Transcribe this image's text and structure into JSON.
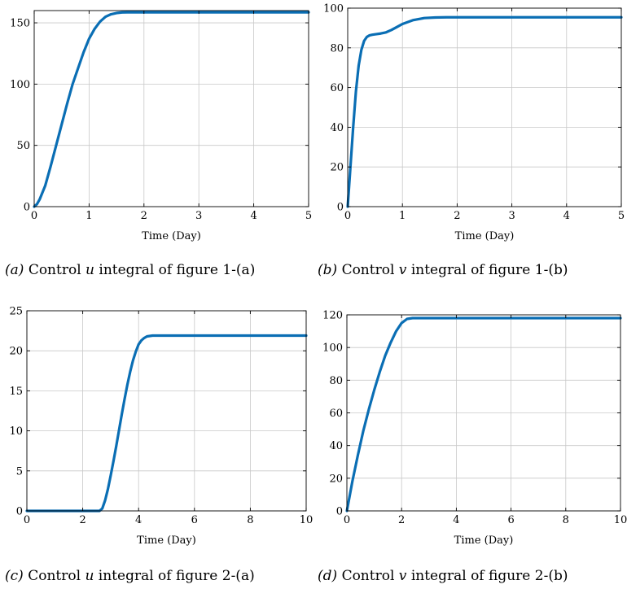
{
  "chart_data": [
    {
      "id": "a",
      "type": "line",
      "xlabel": "Time (Day)",
      "ylabel": "",
      "xlim": [
        0,
        5
      ],
      "ylim": [
        0,
        160
      ],
      "xticks": [
        0,
        1,
        2,
        3,
        4,
        5
      ],
      "yticks": [
        0,
        50,
        100,
        150
      ],
      "grid": true,
      "color": "#0a6eb4",
      "caption": {
        "letter": "(a)",
        "pre": "Control",
        "var": "u",
        "post": "integral of figure 1-(a)"
      },
      "series": [
        {
          "x": [
            0,
            0.05,
            0.1,
            0.2,
            0.3,
            0.4,
            0.5,
            0.6,
            0.7,
            0.8,
            0.9,
            1.0,
            1.1,
            1.2,
            1.3,
            1.4,
            1.5,
            1.6,
            1.7,
            2.0,
            3.0,
            4.0,
            5.0
          ],
          "y": [
            0,
            2,
            6,
            17,
            33,
            50,
            67,
            84,
            100,
            113,
            126,
            137,
            145,
            151,
            155,
            157,
            158,
            158.5,
            158.6,
            158.6,
            158.6,
            158.6,
            158.6
          ]
        }
      ]
    },
    {
      "id": "b",
      "type": "line",
      "xlabel": "Time (Day)",
      "ylabel": "",
      "xlim": [
        0,
        5
      ],
      "ylim": [
        0,
        100
      ],
      "xticks": [
        0,
        1,
        2,
        3,
        4,
        5
      ],
      "yticks": [
        0,
        20,
        40,
        60,
        80,
        100
      ],
      "grid": true,
      "color": "#0a6eb4",
      "caption": {
        "letter": "(b)",
        "pre": "Control",
        "var": "v",
        "post": "integral of figure 1-(b)"
      },
      "series": [
        {
          "x": [
            0,
            0.05,
            0.1,
            0.15,
            0.2,
            0.25,
            0.3,
            0.35,
            0.4,
            0.45,
            0.5,
            0.6,
            0.7,
            0.8,
            0.9,
            1.0,
            1.2,
            1.4,
            1.6,
            1.8,
            2.0,
            3.0,
            4.0,
            5.0
          ],
          "y": [
            0,
            20,
            40,
            58,
            71,
            79,
            83.5,
            85.5,
            86.3,
            86.6,
            86.8,
            87.2,
            87.8,
            89,
            90.5,
            92,
            94,
            95,
            95.3,
            95.4,
            95.4,
            95.4,
            95.4,
            95.4
          ]
        }
      ]
    },
    {
      "id": "c",
      "type": "line",
      "xlabel": "Time (Day)",
      "ylabel": "",
      "xlim": [
        0,
        10
      ],
      "ylim": [
        0,
        25
      ],
      "xticks": [
        0,
        2,
        4,
        6,
        8,
        10
      ],
      "yticks": [
        0,
        5,
        10,
        15,
        20,
        25
      ],
      "grid": true,
      "color": "#0a6eb4",
      "caption": {
        "letter": "(c)",
        "pre": "Control",
        "var": "u",
        "post": "integral of figure 2-(a)"
      },
      "series": [
        {
          "x": [
            0,
            2.6,
            2.7,
            2.8,
            2.9,
            3.0,
            3.1,
            3.2,
            3.3,
            3.4,
            3.5,
            3.6,
            3.7,
            3.8,
            3.9,
            4.0,
            4.1,
            4.2,
            4.3,
            4.4,
            4.5,
            5.0,
            6.0,
            8.0,
            10.0
          ],
          "y": [
            0,
            0,
            0.3,
            1.3,
            2.7,
            4.4,
            6.2,
            8.1,
            10.1,
            12.1,
            14.0,
            15.8,
            17.4,
            18.8,
            19.9,
            20.8,
            21.3,
            21.6,
            21.8,
            21.85,
            21.9,
            21.9,
            21.9,
            21.9,
            21.9
          ]
        }
      ]
    },
    {
      "id": "d",
      "type": "line",
      "xlabel": "Time (Day)",
      "ylabel": "",
      "xlim": [
        0,
        10
      ],
      "ylim": [
        0,
        120
      ],
      "xticks": [
        0,
        2,
        4,
        6,
        8,
        10
      ],
      "yticks": [
        0,
        20,
        40,
        60,
        80,
        100,
        120
      ],
      "grid": true,
      "color": "#0a6eb4",
      "caption": {
        "letter": "(d)",
        "pre": "Control",
        "var": "v",
        "post": "integral of figure 2-(b)"
      },
      "series": [
        {
          "x": [
            0,
            0.1,
            0.2,
            0.4,
            0.6,
            0.8,
            1.0,
            1.2,
            1.4,
            1.6,
            1.8,
            2.0,
            2.2,
            2.4,
            3.0,
            4.0,
            6.0,
            8.0,
            10.0
          ],
          "y": [
            0,
            9,
            18,
            34,
            49,
            62,
            74,
            85,
            95,
            103,
            110,
            115,
            117.5,
            118,
            118,
            118,
            118,
            118,
            118
          ]
        }
      ]
    }
  ]
}
